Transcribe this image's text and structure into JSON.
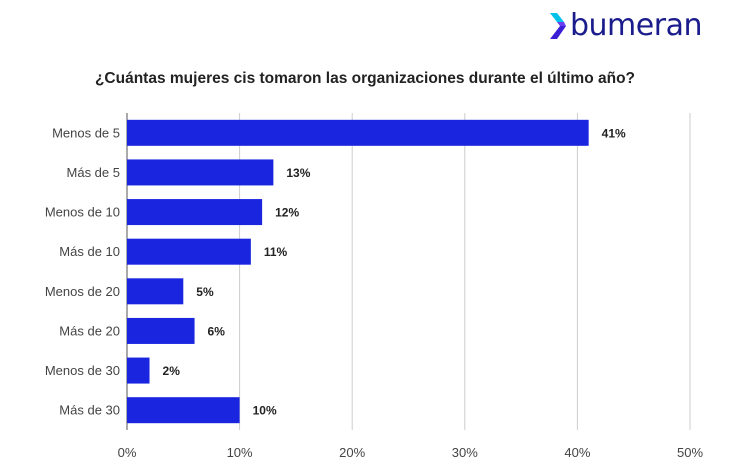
{
  "brand": {
    "name": "bumeran",
    "logo_icon": "chevron-arrow-icon",
    "colors": {
      "mark_top": "#00c2e8",
      "mark_mid": "#6a3df0",
      "mark_bottom": "#3b1fd6",
      "text": "#1a1c8c"
    }
  },
  "chart_data": {
    "type": "bar",
    "orientation": "horizontal",
    "title": "¿Cuántas mujeres cis tomaron las organizaciones durante el último año?",
    "categories": [
      "Menos de 5",
      "Más de 5",
      "Menos de 10",
      "Más de 10",
      "Menos de 20",
      "Más de 20",
      "Menos de 30",
      "Más de 30"
    ],
    "values": [
      41,
      13,
      12,
      11,
      5,
      6,
      2,
      10
    ],
    "value_labels": [
      "41%",
      "13%",
      "12%",
      "11%",
      "5%",
      "6%",
      "2%",
      "10%"
    ],
    "xlim": [
      0,
      50
    ],
    "xticks": [
      0,
      10,
      20,
      30,
      40,
      50
    ],
    "xtick_labels": [
      "0%",
      "10%",
      "20%",
      "30%",
      "40%",
      "50%"
    ],
    "xlabel": "",
    "ylabel": "",
    "grid": true,
    "bar_color": "#1a25e0"
  }
}
